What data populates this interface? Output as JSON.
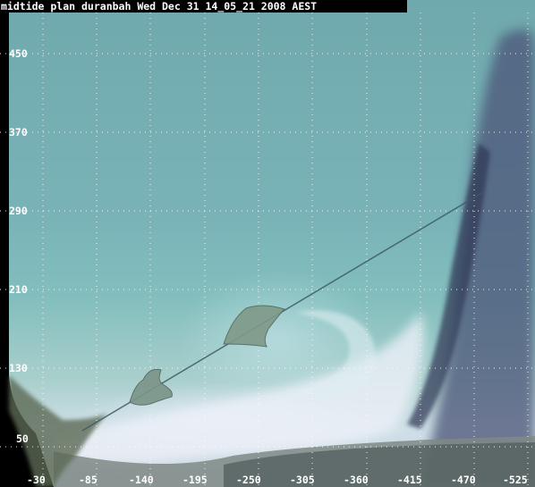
{
  "title": "midtide plan  duranbah Wed Dec 31 14_05_21 2008 AEST",
  "axes": {
    "y_ticks": [
      "450",
      "370",
      "290",
      "210",
      "130",
      "50"
    ],
    "x_ticks": [
      "-30",
      "-85",
      "-140",
      "-195",
      "-250",
      "-305",
      "-360",
      "-415",
      "-470",
      "-525"
    ]
  },
  "colors": {
    "label": "#ffffff",
    "grid": "#ffffff",
    "title_bg": "#000000",
    "ocean": "#76afb4",
    "surf": "#e6ecf6",
    "dark_swell": "#39415e"
  }
}
